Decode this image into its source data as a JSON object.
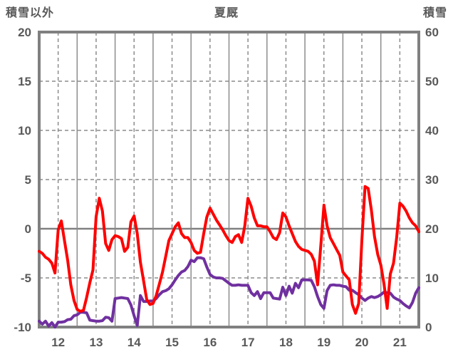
{
  "chart_data": {
    "type": "line",
    "title": "夏厩",
    "legend": "none",
    "grid": true,
    "x_unit": "hours from day 12 00:00",
    "x_range_hours": [
      0,
      240
    ],
    "sample_interval_hours": 2,
    "x_day_labels": [
      "12",
      "13",
      "14",
      "15",
      "16",
      "17",
      "18",
      "19",
      "20",
      "21"
    ],
    "left_axis": {
      "label": "積雪以外",
      "min": -10,
      "max": 20,
      "ticks": [
        20,
        15,
        10,
        5,
        0,
        -5,
        -10
      ]
    },
    "right_axis": {
      "label": "積雪",
      "min": 0,
      "max": 60,
      "ticks": [
        60,
        50,
        40,
        30,
        20,
        10,
        0
      ]
    },
    "series": [
      {
        "name": "purple-line",
        "axis": "right",
        "color": "#7030A0",
        "values": [
          1.2,
          0.6,
          1.2,
          0.2,
          0.9,
          0.0,
          1.0,
          1.0,
          1.1,
          1.5,
          1.6,
          2.3,
          2.5,
          3.0,
          3.0,
          2.9,
          1.4,
          1.3,
          1.2,
          1.2,
          1.3,
          2.0,
          1.9,
          1.2,
          5.8,
          5.9,
          6.0,
          5.9,
          5.8,
          4.5,
          2.3,
          0.3,
          6.4,
          5.2,
          5.2,
          5.3,
          5.3,
          5.8,
          6.6,
          7.2,
          7.4,
          7.8,
          8.6,
          9.6,
          10.5,
          11.2,
          11.5,
          12.3,
          13.6,
          13.3,
          14.1,
          14.1,
          13.9,
          12.2,
          10.7,
          10.2,
          10.0,
          10.0,
          9.9,
          9.4,
          8.9,
          8.5,
          8.5,
          8.6,
          8.5,
          8.5,
          8.5,
          7.0,
          6.4,
          7.2,
          5.8,
          7.0,
          7.0,
          7.0,
          5.9,
          5.8,
          5.7,
          8.1,
          6.4,
          8.3,
          6.9,
          8.9,
          8.0,
          9.6,
          9.6,
          9.6,
          9.5,
          8.2,
          6.2,
          4.6,
          3.8,
          7.4,
          8.5,
          8.6,
          8.5,
          8.5,
          8.3,
          8.2,
          7.5,
          7.5,
          7.0,
          6.6,
          5.9,
          5.4,
          5.9,
          6.2,
          6.0,
          6.2,
          6.6,
          7.1,
          7.0,
          6.9,
          6.1,
          5.7,
          5.4,
          4.8,
          4.3,
          3.9,
          5.0,
          6.9,
          8.0
        ]
      },
      {
        "name": "red-line",
        "axis": "left",
        "color": "#FF0000",
        "values": [
          -2.3,
          -2.5,
          -2.9,
          -3.1,
          -3.5,
          -4.5,
          -0.1,
          0.8,
          -1.2,
          -3.2,
          -5.7,
          -7.3,
          -8.2,
          -8.4,
          -8.3,
          -7.0,
          -5.5,
          -4.2,
          1.2,
          3.1,
          1.8,
          -1.5,
          -2.2,
          -1.1,
          -0.7,
          -0.8,
          -1.0,
          -2.3,
          -1.9,
          0.7,
          1.3,
          -0.5,
          -3.4,
          -5.3,
          -7.2,
          -7.7,
          -7.6,
          -6.8,
          -5.6,
          -4.4,
          -2.8,
          -1.2,
          -0.5,
          0.2,
          0.6,
          -0.5,
          -0.9,
          -0.9,
          -1.4,
          -2.2,
          -2.5,
          -2.4,
          -0.5,
          1.2,
          2.1,
          1.5,
          0.9,
          0.4,
          -0.1,
          -0.7,
          -1.2,
          -1.4,
          -0.8,
          -0.6,
          -1.4,
          0.3,
          3.1,
          2.3,
          1.1,
          0.3,
          0.3,
          0.2,
          0.2,
          -0.3,
          -0.9,
          -1.1,
          -0.4,
          1.6,
          1.2,
          0.3,
          -0.5,
          -1.3,
          -1.8,
          -2.1,
          -2.2,
          -2.3,
          -2.6,
          -3.3,
          -5.7,
          -1.8,
          2.4,
          0.3,
          -0.9,
          -1.5,
          -2.1,
          -2.7,
          -4.4,
          -4.8,
          -5.2,
          -7.7,
          -8.6,
          -7.6,
          -1.1,
          4.3,
          4.1,
          1.9,
          -0.8,
          -2.6,
          -3.7,
          -5.6,
          -8.1,
          -4.6,
          -3.5,
          -0.9,
          2.6,
          2.3,
          1.8,
          1.1,
          0.6,
          0.3,
          -0.3
        ]
      }
    ]
  },
  "colors": {
    "text": "#595959",
    "border": "#808080",
    "grid": "#8C8C8C",
    "zero_line": "#808080",
    "background": "#FFFFFF"
  }
}
